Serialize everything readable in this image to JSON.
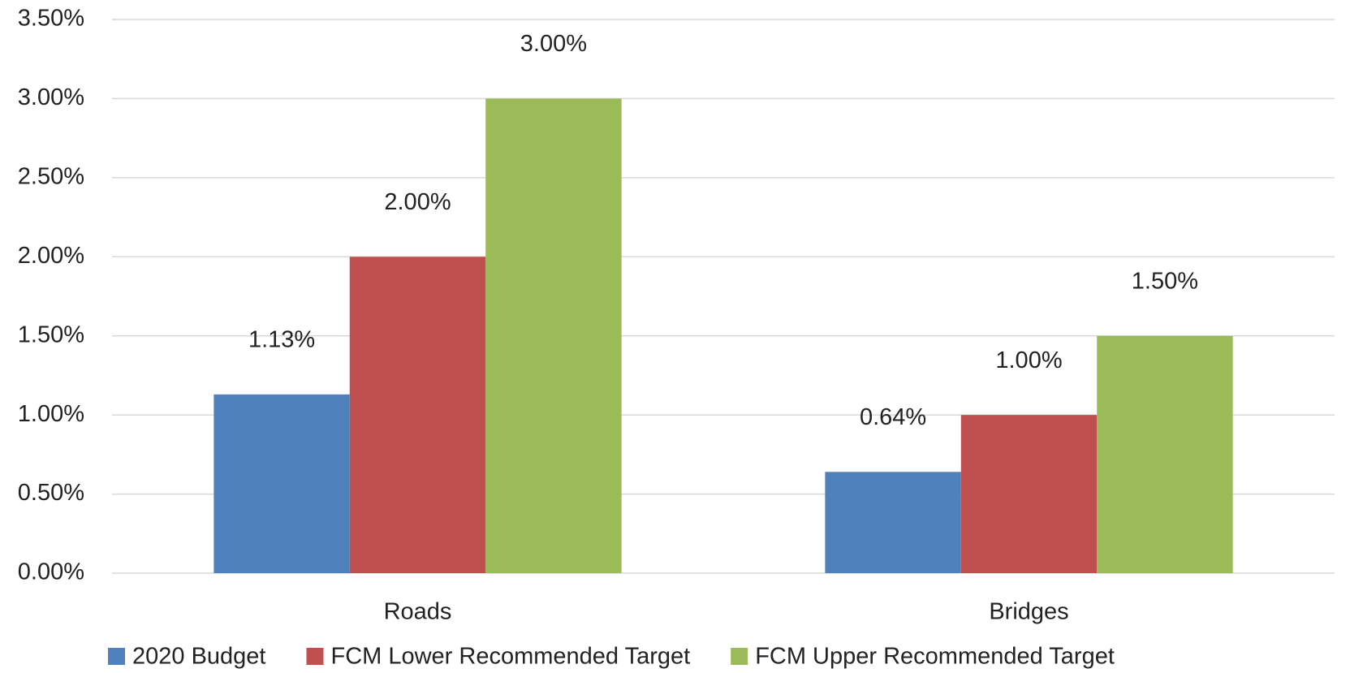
{
  "chart_data": {
    "type": "bar",
    "categories": [
      "Roads",
      "Bridges"
    ],
    "series": [
      {
        "name": "2020 Budget",
        "color": "#4f81bd",
        "values": [
          1.13,
          0.64
        ],
        "value_labels": [
          "1.13%",
          "0.64%"
        ]
      },
      {
        "name": "FCM Lower Recommended Target",
        "color": "#c0504d",
        "values": [
          2.0,
          1.0
        ],
        "value_labels": [
          "2.00%",
          "1.00%"
        ]
      },
      {
        "name": "FCM Upper Recommended Target",
        "color": "#9bbb59",
        "values": [
          3.0,
          1.5
        ],
        "value_labels": [
          "3.00%",
          "1.50%"
        ]
      }
    ],
    "ylim": [
      0,
      3.5
    ],
    "yticks": [
      {
        "value": 0,
        "label": "0.00%"
      },
      {
        "value": 0.5,
        "label": "0.50%"
      },
      {
        "value": 1,
        "label": "1.00%"
      },
      {
        "value": 1.5,
        "label": "1.50%"
      },
      {
        "value": 2,
        "label": "2.00%"
      },
      {
        "value": 2.5,
        "label": "2.50%"
      },
      {
        "value": 3,
        "label": "3.00%"
      },
      {
        "value": 3.5,
        "label": "3.50%"
      }
    ],
    "grid": true,
    "legend": "bottom"
  }
}
